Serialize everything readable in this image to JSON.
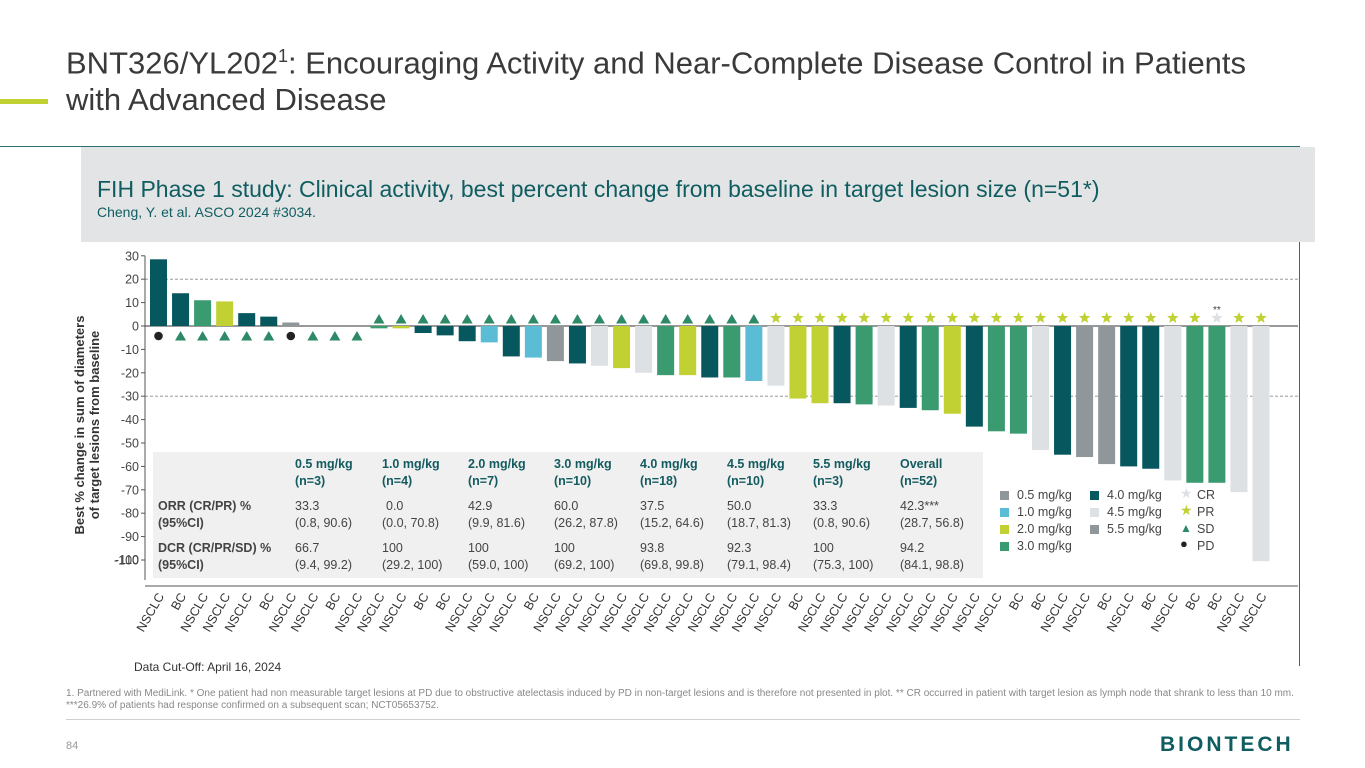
{
  "header": {
    "title_main": "BNT326/YL202",
    "title_sup": "1",
    "title_rest": ": Encouraging Activity and Near-Complete Disease Control in Patients with Advanced Disease",
    "accent_color": "#c1d032"
  },
  "banner": {
    "title": "FIH Phase 1 study: Clinical activity, best percent change from baseline in target lesion size (n=51*)",
    "subtitle": "Cheng, Y. et al. ASCO 2024 #3034."
  },
  "colors": {
    "0.5 mg/kg": "#8f979b",
    "1.0 mg/kg": "#5bbcd6",
    "2.0 mg/kg": "#c1d032",
    "3.0 mg/kg": "#3a9a70",
    "4.0 mg/kg": "#07575e",
    "4.5 mg/kg": "#dde1e4",
    "5.5 mg/kg": "#8f979b",
    "marker": "#2e8a66",
    "star": "#c1d032"
  },
  "chart_data": {
    "type": "bar",
    "ylabel": "Best % change in sum of diameters of target lesions from baseline",
    "ylim": [
      -100,
      30
    ],
    "yticks": [
      "30",
      "20",
      "10",
      "0",
      "-10",
      "-20",
      "-30",
      "-40",
      "-50",
      "-60",
      "-70",
      "-80",
      "-90",
      "-100"
    ],
    "reference_lines": [
      20,
      -30
    ],
    "overlapping_tick_label": "-110",
    "categories": [
      "NSCLC",
      "BC",
      "NSCLC",
      "NSCLC",
      "NSCLC",
      "BC",
      "NSCLC",
      "NSCLC",
      "BC",
      "NSCLC",
      "NSCLC",
      "NSCLC",
      "BC",
      "BC",
      "NSCLC",
      "NSCLC",
      "NSCLC",
      "BC",
      "NSCLC",
      "NSCLC",
      "NSCLC",
      "NSCLC",
      "NSCLC",
      "NSCLC",
      "NSCLC",
      "NSCLC",
      "NSCLC",
      "NSCLC",
      "NSCLC",
      "BC",
      "NSCLC",
      "NSCLC",
      "NSCLC",
      "NSCLC",
      "NSCLC",
      "NSCLC",
      "NSCLC",
      "NSCLC",
      "NSCLC",
      "BC",
      "BC",
      "NSCLC",
      "NSCLC",
      "BC",
      "NSCLC",
      "BC",
      "NSCLC",
      "BC",
      "BC",
      "NSCLC",
      "NSCLC"
    ],
    "values": [
      28.5,
      14,
      11,
      10.5,
      5.5,
      4,
      1.5,
      0,
      0,
      0,
      -1,
      -1,
      -3,
      -4,
      -6.5,
      -7,
      -13,
      -13.5,
      -15,
      -16,
      -17,
      -18,
      -20,
      -21,
      -21,
      -22,
      -22,
      -23.5,
      -25.5,
      -31,
      -33,
      -33,
      -33.5,
      -34,
      -35,
      -36,
      -37.5,
      -43,
      -45,
      -46,
      -53,
      -55,
      -56,
      -59,
      -60,
      -61,
      -66,
      -67,
      -67,
      -71,
      -100.5
    ],
    "dose": [
      "4.0 mg/kg",
      "4.0 mg/kg",
      "3.0 mg/kg",
      "2.0 mg/kg",
      "4.0 mg/kg",
      "4.0 mg/kg",
      "0.5 mg/kg",
      "",
      "",
      "",
      "3.0 mg/kg",
      "2.0 mg/kg",
      "4.0 mg/kg",
      "4.0 mg/kg",
      "4.0 mg/kg",
      "1.0 mg/kg",
      "4.0 mg/kg",
      "1.0 mg/kg",
      "0.5 mg/kg",
      "4.0 mg/kg",
      "4.5 mg/kg",
      "2.0 mg/kg",
      "4.5 mg/kg",
      "3.0 mg/kg",
      "2.0 mg/kg",
      "4.0 mg/kg",
      "3.0 mg/kg",
      "1.0 mg/kg",
      "4.5 mg/kg",
      "2.0 mg/kg",
      "2.0 mg/kg",
      "4.0 mg/kg",
      "3.0 mg/kg",
      "4.5 mg/kg",
      "4.0 mg/kg",
      "3.0 mg/kg",
      "2.0 mg/kg",
      "4.0 mg/kg",
      "3.0 mg/kg",
      "3.0 mg/kg",
      "4.5 mg/kg",
      "4.0 mg/kg",
      "5.5 mg/kg",
      "5.5 mg/kg",
      "4.0 mg/kg",
      "4.0 mg/kg",
      "4.5 mg/kg",
      "3.0 mg/kg",
      "3.0 mg/kg",
      "4.5 mg/kg",
      "4.5 mg/kg"
    ],
    "response": [
      "PD",
      "SD",
      "SD",
      "SD",
      "SD",
      "SD",
      "PD",
      "SD",
      "SD",
      "SD",
      "SD",
      "SD",
      "SD",
      "SD",
      "SD",
      "SD",
      "SD",
      "SD",
      "SD",
      "SD",
      "SD",
      "SD",
      "SD",
      "SD",
      "SD",
      "SD",
      "SD",
      "SD",
      "PR",
      "PR",
      "PR",
      "PR",
      "PR",
      "PR",
      "PR",
      "PR",
      "PR",
      "PR",
      "PR",
      "PR",
      "PR",
      "PR",
      "PR",
      "PR",
      "PR",
      "PR",
      "PR",
      "PR",
      "CR",
      "PR",
      "PR"
    ],
    "cr_annotation": "**",
    "legend": {
      "dose_items": [
        "0.5 mg/kg",
        "1.0 mg/kg",
        "2.0 mg/kg",
        "3.0 mg/kg",
        "4.0 mg/kg",
        "4.5 mg/kg",
        "5.5 mg/kg"
      ],
      "response_items": [
        "CR",
        "PR",
        "SD",
        "PD"
      ]
    }
  },
  "summary_table": {
    "headers": [
      {
        "dose": "0.5 mg/kg",
        "n": "(n=3)"
      },
      {
        "dose": "1.0 mg/kg",
        "n": "(n=4)"
      },
      {
        "dose": "2.0 mg/kg",
        "n": "(n=7)"
      },
      {
        "dose": "3.0 mg/kg",
        "n": "(n=10)"
      },
      {
        "dose": "4.0 mg/kg",
        "n": "(n=18)"
      },
      {
        "dose": "4.5 mg/kg",
        "n": "(n=10)"
      },
      {
        "dose": "5.5 mg/kg",
        "n": "(n=3)"
      },
      {
        "dose": "Overall",
        "n": "(n=52)"
      }
    ],
    "rows": [
      {
        "label1": "ORR (CR/PR) %",
        "label2": "(95%CI)",
        "vals": [
          "33.3",
          "0.0",
          "42.9",
          "60.0",
          "37.5",
          "50.0",
          "33.3",
          "42.3***"
        ],
        "cis": [
          "(0.8, 90.6)",
          "(0.0, 70.8)",
          "(9.9, 81.6)",
          "(26.2, 87.8)",
          "(15.2, 64.6)",
          "(18.7, 81.3)",
          "(0.8, 90.6)",
          "(28.7, 56.8)"
        ]
      },
      {
        "label1": "DCR (CR/PR/SD) %",
        "label2": "(95%CI)",
        "vals": [
          "66.7",
          "100",
          "100",
          "100",
          "93.8",
          "92.3",
          "100",
          "94.2"
        ],
        "cis": [
          "(9.4, 99.2)",
          "(29.2, 100)",
          "(59.0, 100)",
          "(69.2, 100)",
          "(69.8, 99.8)",
          "(79.1, 98.4)",
          "(75.3, 100)",
          "(84.1, 98.8)"
        ]
      }
    ]
  },
  "cutoff": "Data Cut-Off: April 16, 2024",
  "footnote": "1. Partnered with MediLink. * One patient had non measurable target lesions at PD due to obstructive atelectasis induced by PD in non-target lesions and is therefore not presented in plot. ** CR occurred in patient with target lesion as lymph node that shrank to less than 10 mm.  ***26.9% of patients had response confirmed on a subsequent scan; NCT05653752.",
  "page_number": "84",
  "brand": "BIONTECH"
}
